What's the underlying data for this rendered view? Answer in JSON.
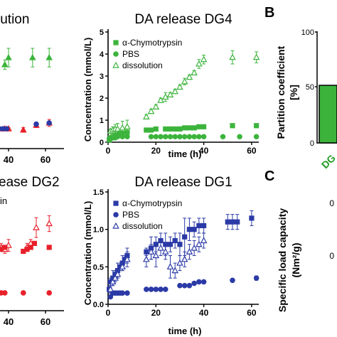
{
  "colors": {
    "green": "#3cb43c",
    "red": "#e8202a",
    "blue": "#2b3aa6",
    "dark_green": "#1f7a1f",
    "axis": "#000000"
  },
  "labels": {
    "frag_top_left_title": "lution",
    "frag_bottom_left_title": "ease DG2",
    "frag_bottom_left_legend": "in",
    "panel_b_letter": "B",
    "panel_c_letter": "C",
    "panel_b_ylabel_line1": "Partition coefficient",
    "panel_b_ylabel_line2": "[%]",
    "panel_b_bar_label": "DG",
    "panel_c_ylabel_line1": "Specific load capacity",
    "panel_c_ylabel_line2": "(Nm²/g)",
    "frag_ticks_top": [
      "40",
      "60"
    ],
    "frag_ticks_bottom": [
      "40",
      "60"
    ],
    "panel_b_ticks": [
      "100",
      "50",
      "0"
    ],
    "panel_c_ticks": [
      "0",
      "0"
    ]
  },
  "chart_data": [
    {
      "id": "dg4",
      "type": "scatter",
      "title": "DA release DG4",
      "xlabel": "time (h)",
      "ylabel": "Concentration (mmol/L)",
      "xlim": [
        0,
        63
      ],
      "ylim": [
        0,
        5
      ],
      "xticks": [
        0,
        20,
        40,
        60
      ],
      "yticks": [
        0,
        1,
        2,
        3,
        4,
        5
      ],
      "legend_position": "top-left",
      "series": [
        {
          "name": "α-Chymotrypsin",
          "marker": "square",
          "filled": true,
          "x": [
            0.5,
            1,
            2,
            3,
            4,
            5,
            6,
            8,
            16,
            18,
            20,
            24,
            26,
            28,
            30,
            32,
            34,
            36,
            38,
            40,
            52,
            62
          ],
          "y": [
            0.1,
            0.2,
            0.25,
            0.3,
            0.35,
            0.4,
            0.4,
            0.45,
            0.55,
            0.55,
            0.6,
            0.6,
            0.6,
            0.6,
            0.6,
            0.65,
            0.65,
            0.65,
            0.7,
            0.7,
            0.75,
            0.75
          ],
          "err": [
            0.05,
            0.05,
            0.05,
            0.05,
            0.05,
            0.05,
            0.05,
            0.05,
            0.05,
            0.05,
            0.05,
            0.05,
            0.05,
            0.05,
            0.1,
            0.05,
            0.05,
            0.05,
            0.05,
            0.05,
            0.05,
            0.05
          ]
        },
        {
          "name": "PBS",
          "marker": "circle",
          "filled": true,
          "x": [
            1,
            2,
            3,
            4,
            6,
            8,
            18,
            20,
            22,
            24,
            26,
            28,
            30,
            32,
            34,
            36,
            38,
            40,
            48,
            55,
            62
          ],
          "y": [
            0.15,
            0.2,
            0.2,
            0.25,
            0.25,
            0.25,
            0.25,
            0.25,
            0.25,
            0.25,
            0.25,
            0.25,
            0.25,
            0.25,
            0.25,
            0.25,
            0.25,
            0.25,
            0.25,
            0.25,
            0.25
          ],
          "err": [
            0,
            0,
            0,
            0,
            0,
            0,
            0,
            0,
            0,
            0,
            0,
            0,
            0,
            0,
            0,
            0,
            0,
            0,
            0,
            0,
            0
          ]
        },
        {
          "name": "dissolution",
          "marker": "triangle",
          "filled": false,
          "x": [
            1,
            2,
            3,
            4,
            6,
            8,
            16,
            18,
            20,
            22,
            24,
            26,
            28,
            30,
            32,
            34,
            36,
            38,
            40,
            52,
            62
          ],
          "y": [
            0.5,
            0.55,
            0.6,
            0.6,
            0.65,
            0.7,
            1.15,
            1.4,
            1.6,
            1.9,
            2.05,
            2.15,
            2.3,
            2.5,
            2.75,
            2.95,
            3.15,
            3.55,
            3.75,
            3.85,
            3.85
          ],
          "err": [
            0.1,
            0.15,
            0.2,
            0.25,
            0.3,
            0.3,
            0.1,
            0.1,
            0.1,
            0.1,
            0.2,
            0.1,
            0.1,
            0.1,
            0.15,
            0.1,
            0.1,
            0.2,
            0.2,
            0.3,
            0.25
          ]
        }
      ]
    },
    {
      "id": "dg1",
      "type": "scatter",
      "title": "DA release DG1",
      "xlabel": "time (h)",
      "ylabel": "Concentration (mmol/L)",
      "xlim": [
        0,
        63
      ],
      "ylim": [
        0,
        1.5
      ],
      "xticks": [
        0,
        20,
        40,
        60
      ],
      "yticks": [
        0.0,
        0.5,
        1.0,
        1.5
      ],
      "legend_position": "top-left",
      "series": [
        {
          "name": "α-Chymotrypsin",
          "marker": "square",
          "filled": true,
          "x": [
            0.5,
            1,
            2,
            3,
            4,
            5,
            6,
            7,
            8,
            16,
            18,
            20,
            22,
            24,
            26,
            28,
            30,
            32,
            34,
            36,
            38,
            40,
            50,
            52,
            54,
            60
          ],
          "y": [
            0.2,
            0.3,
            0.35,
            0.4,
            0.45,
            0.5,
            0.55,
            0.6,
            0.65,
            0.7,
            0.75,
            0.8,
            0.85,
            0.8,
            0.8,
            0.85,
            0.8,
            0.9,
            1.0,
            1.0,
            1.05,
            1.05,
            1.1,
            1.1,
            1.1,
            1.15
          ],
          "err": [
            0.05,
            0.05,
            0.1,
            0.05,
            0.1,
            0.05,
            0.1,
            0.05,
            0.1,
            0.05,
            0.15,
            0.1,
            0.1,
            0.15,
            0.1,
            0.1,
            0.15,
            0.25,
            0.15,
            0.1,
            0.1,
            0.1,
            0.1,
            0.1,
            0.1,
            0.1
          ]
        },
        {
          "name": "PBS",
          "marker": "circle",
          "filled": true,
          "x": [
            1,
            2,
            3,
            4,
            5,
            6,
            8,
            16,
            18,
            20,
            22,
            24,
            30,
            32,
            34,
            36,
            38,
            40,
            52,
            62
          ],
          "y": [
            0.1,
            0.15,
            0.15,
            0.15,
            0.15,
            0.15,
            0.15,
            0.2,
            0.2,
            0.2,
            0.2,
            0.2,
            0.25,
            0.25,
            0.25,
            0.28,
            0.3,
            0.3,
            0.32,
            0.35
          ],
          "err": [
            0.02,
            0.02,
            0.02,
            0.02,
            0.02,
            0.02,
            0.02,
            0.02,
            0.02,
            0.02,
            0.02,
            0.02,
            0.02,
            0.02,
            0.02,
            0.02,
            0.02,
            0.02,
            0.02,
            0.03
          ]
        },
        {
          "name": "dissolution",
          "marker": "triangle",
          "filled": false,
          "x": [
            1,
            2,
            3,
            4,
            6,
            8,
            16,
            18,
            20,
            22,
            24,
            26,
            28,
            30,
            32,
            34,
            36,
            38,
            40
          ],
          "y": [
            0.2,
            0.3,
            0.35,
            0.4,
            0.5,
            0.6,
            0.6,
            0.7,
            0.65,
            0.75,
            0.7,
            0.5,
            0.45,
            0.55,
            0.6,
            0.7,
            0.75,
            0.8,
            0.85
          ],
          "err": [
            0.05,
            0.05,
            0.05,
            0.05,
            0.05,
            0.1,
            0.1,
            0.1,
            0.15,
            0.1,
            0.1,
            0.15,
            0.1,
            0.1,
            0.1,
            0.1,
            0.1,
            0.1,
            0.1
          ]
        }
      ]
    },
    {
      "id": "frag_top_left",
      "type": "scatter",
      "title": "lution",
      "xlim": [
        25,
        65
      ],
      "ylim": [
        0,
        5
      ],
      "xticks": [
        40,
        60
      ],
      "series": [
        {
          "name": "dissolution",
          "marker": "triangle",
          "filled": true,
          "color": "green",
          "x": [
            38,
            40,
            53,
            62
          ],
          "y": [
            3.6,
            3.9,
            3.9,
            3.9
          ],
          "err": [
            0.2,
            0.4,
            0.4,
            0.4
          ]
        },
        {
          "name": "α-Chymotrypsin",
          "marker": "triangle",
          "filled": true,
          "color": "red",
          "x": [
            33,
            35,
            38,
            40,
            48,
            55,
            62
          ],
          "y": [
            0.85,
            0.85,
            0.85,
            0.85,
            0.8,
            1.0,
            1.1
          ],
          "err": [
            0.05,
            0.05,
            0.05,
            0.05,
            0.1,
            0.1,
            0.15
          ]
        },
        {
          "name": "PBS",
          "marker": "circle",
          "filled": true,
          "color": "blue",
          "x": [
            33,
            35,
            37,
            39,
            55,
            62
          ],
          "y": [
            0.85,
            0.85,
            0.85,
            0.85,
            1.05,
            1.1
          ],
          "err": [
            0,
            0,
            0,
            0,
            0.05,
            0.05
          ]
        }
      ]
    },
    {
      "id": "frag_bottom_left",
      "type": "scatter",
      "title": "ease DG2",
      "xlim": [
        25,
        65
      ],
      "ylim": [
        0,
        3
      ],
      "xticks": [
        40,
        60
      ],
      "series": [
        {
          "name": "dissolution",
          "marker": "triangle",
          "filled": false,
          "x": [
            36,
            38,
            40,
            50,
            52,
            55,
            62
          ],
          "y": [
            1.6,
            1.55,
            1.65,
            1.6,
            1.7,
            2.1,
            2.2
          ],
          "err": [
            0.1,
            0.1,
            0.15,
            0.1,
            0.1,
            0.25,
            0.2
          ]
        },
        {
          "name": "α-Chymotrypsin",
          "marker": "square",
          "filled": true,
          "x": [
            36,
            38,
            48,
            50,
            52,
            54,
            62
          ],
          "y": [
            1.55,
            1.6,
            1.5,
            1.55,
            1.6,
            1.7,
            1.6
          ],
          "err": [
            0.05,
            0.05,
            0.05,
            0.05,
            0.05,
            0.05,
            0.05
          ]
        },
        {
          "name": "PBS",
          "marker": "circle",
          "filled": true,
          "x": [
            36,
            38,
            48,
            62
          ],
          "y": [
            0.45,
            0.45,
            0.45,
            0.45
          ],
          "err": [
            0,
            0,
            0,
            0
          ]
        }
      ]
    }
  ]
}
